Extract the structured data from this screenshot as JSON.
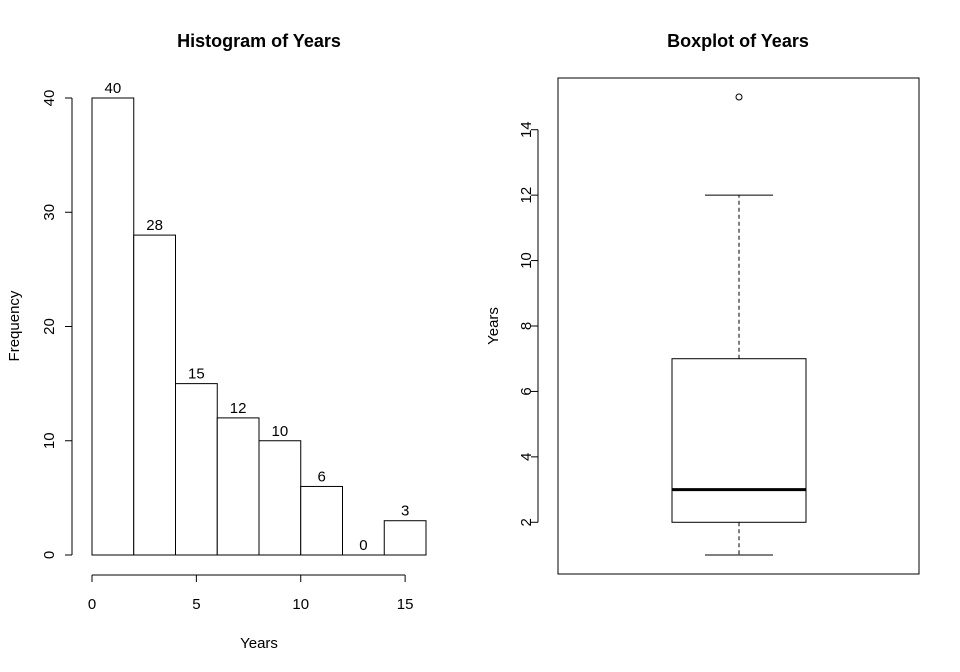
{
  "chart_data": [
    {
      "type": "bar",
      "title": "Histogram of Years",
      "xlabel": "Years",
      "ylabel": "Frequency",
      "bins": [
        [
          0,
          2
        ],
        [
          2,
          4
        ],
        [
          4,
          6
        ],
        [
          6,
          8
        ],
        [
          8,
          10
        ],
        [
          10,
          12
        ],
        [
          12,
          14
        ],
        [
          14,
          16
        ]
      ],
      "values": [
        40,
        28,
        15,
        12,
        10,
        6,
        0,
        3
      ],
      "data_labels": [
        "40",
        "28",
        "15",
        "12",
        "10",
        "6",
        "0",
        "3"
      ],
      "xticks": [
        0,
        5,
        10,
        15
      ],
      "xtick_labels": [
        "0",
        "5",
        "10",
        "15"
      ],
      "yticks": [
        0,
        10,
        20,
        30,
        40
      ],
      "ytick_labels": [
        "0",
        "10",
        "20",
        "30",
        "40"
      ],
      "xlim": [
        0,
        16
      ],
      "ylim": [
        0,
        40
      ],
      "grid": false
    },
    {
      "type": "box",
      "title": "Boxplot of Years",
      "xlabel": "",
      "ylabel": "Years",
      "whisker_low": 1,
      "q1": 2,
      "median": 3,
      "q3": 7,
      "whisker_high": 12,
      "outliers": [
        15
      ],
      "yticks": [
        2,
        4,
        6,
        8,
        10,
        12,
        14
      ],
      "ytick_labels": [
        "2",
        "4",
        "6",
        "8",
        "10",
        "12",
        "14"
      ],
      "ylim": [
        1,
        15
      ],
      "grid": false
    }
  ]
}
